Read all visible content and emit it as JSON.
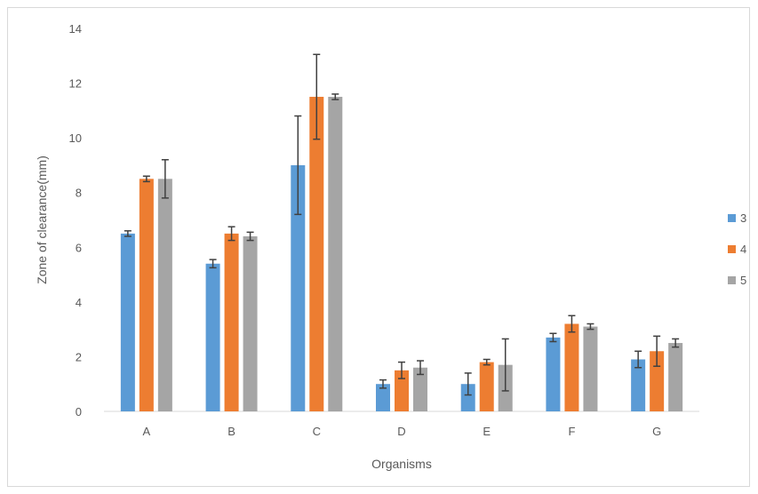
{
  "chart_data": {
    "type": "bar",
    "title": "",
    "xlabel": "Organisms",
    "ylabel": "Zone of clearance(mm)",
    "categories": [
      "A",
      "B",
      "C",
      "D",
      "E",
      "F",
      "G"
    ],
    "ylim": [
      0,
      14
    ],
    "yticks": [
      0,
      2,
      4,
      6,
      8,
      10,
      12,
      14
    ],
    "grid": false,
    "legend_position": "right",
    "series": [
      {
        "name": "3",
        "color": "#5b9bd5",
        "values": [
          6.5,
          5.4,
          9.0,
          1.0,
          1.0,
          2.7,
          1.9
        ],
        "errors": [
          0.1,
          0.15,
          1.8,
          0.15,
          0.4,
          0.15,
          0.3
        ]
      },
      {
        "name": "4",
        "color": "#ed7d31",
        "values": [
          8.5,
          6.5,
          11.5,
          1.5,
          1.8,
          3.2,
          2.2
        ],
        "errors": [
          0.1,
          0.25,
          1.55,
          0.3,
          0.1,
          0.3,
          0.55
        ]
      },
      {
        "name": "5",
        "color": "#a5a5a5",
        "values": [
          8.5,
          6.4,
          11.5,
          1.6,
          1.7,
          3.1,
          2.5
        ],
        "errors": [
          0.7,
          0.15,
          0.1,
          0.25,
          0.95,
          0.1,
          0.15
        ]
      }
    ]
  }
}
